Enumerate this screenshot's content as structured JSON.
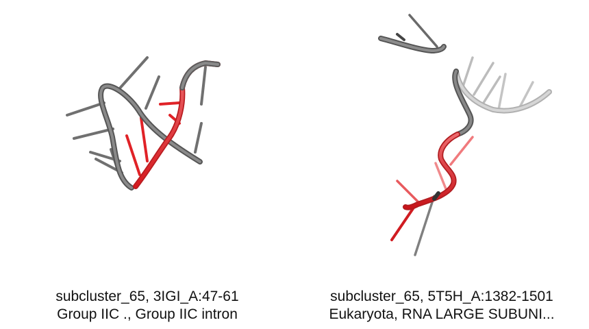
{
  "panels": [
    {
      "title": "subcluster_65, 3IGI_A:47-61",
      "subtitle": "Group IIC ., Group IIC intron"
    },
    {
      "title": "subcluster_65, 5T5H_A:1382-1501",
      "subtitle": "Eukaryota, RNA LARGE SUBUNI..."
    }
  ],
  "colors": {
    "backbone": "#6b6b6b",
    "highlight": "#e0262b",
    "faded": "#c8c8c8"
  }
}
